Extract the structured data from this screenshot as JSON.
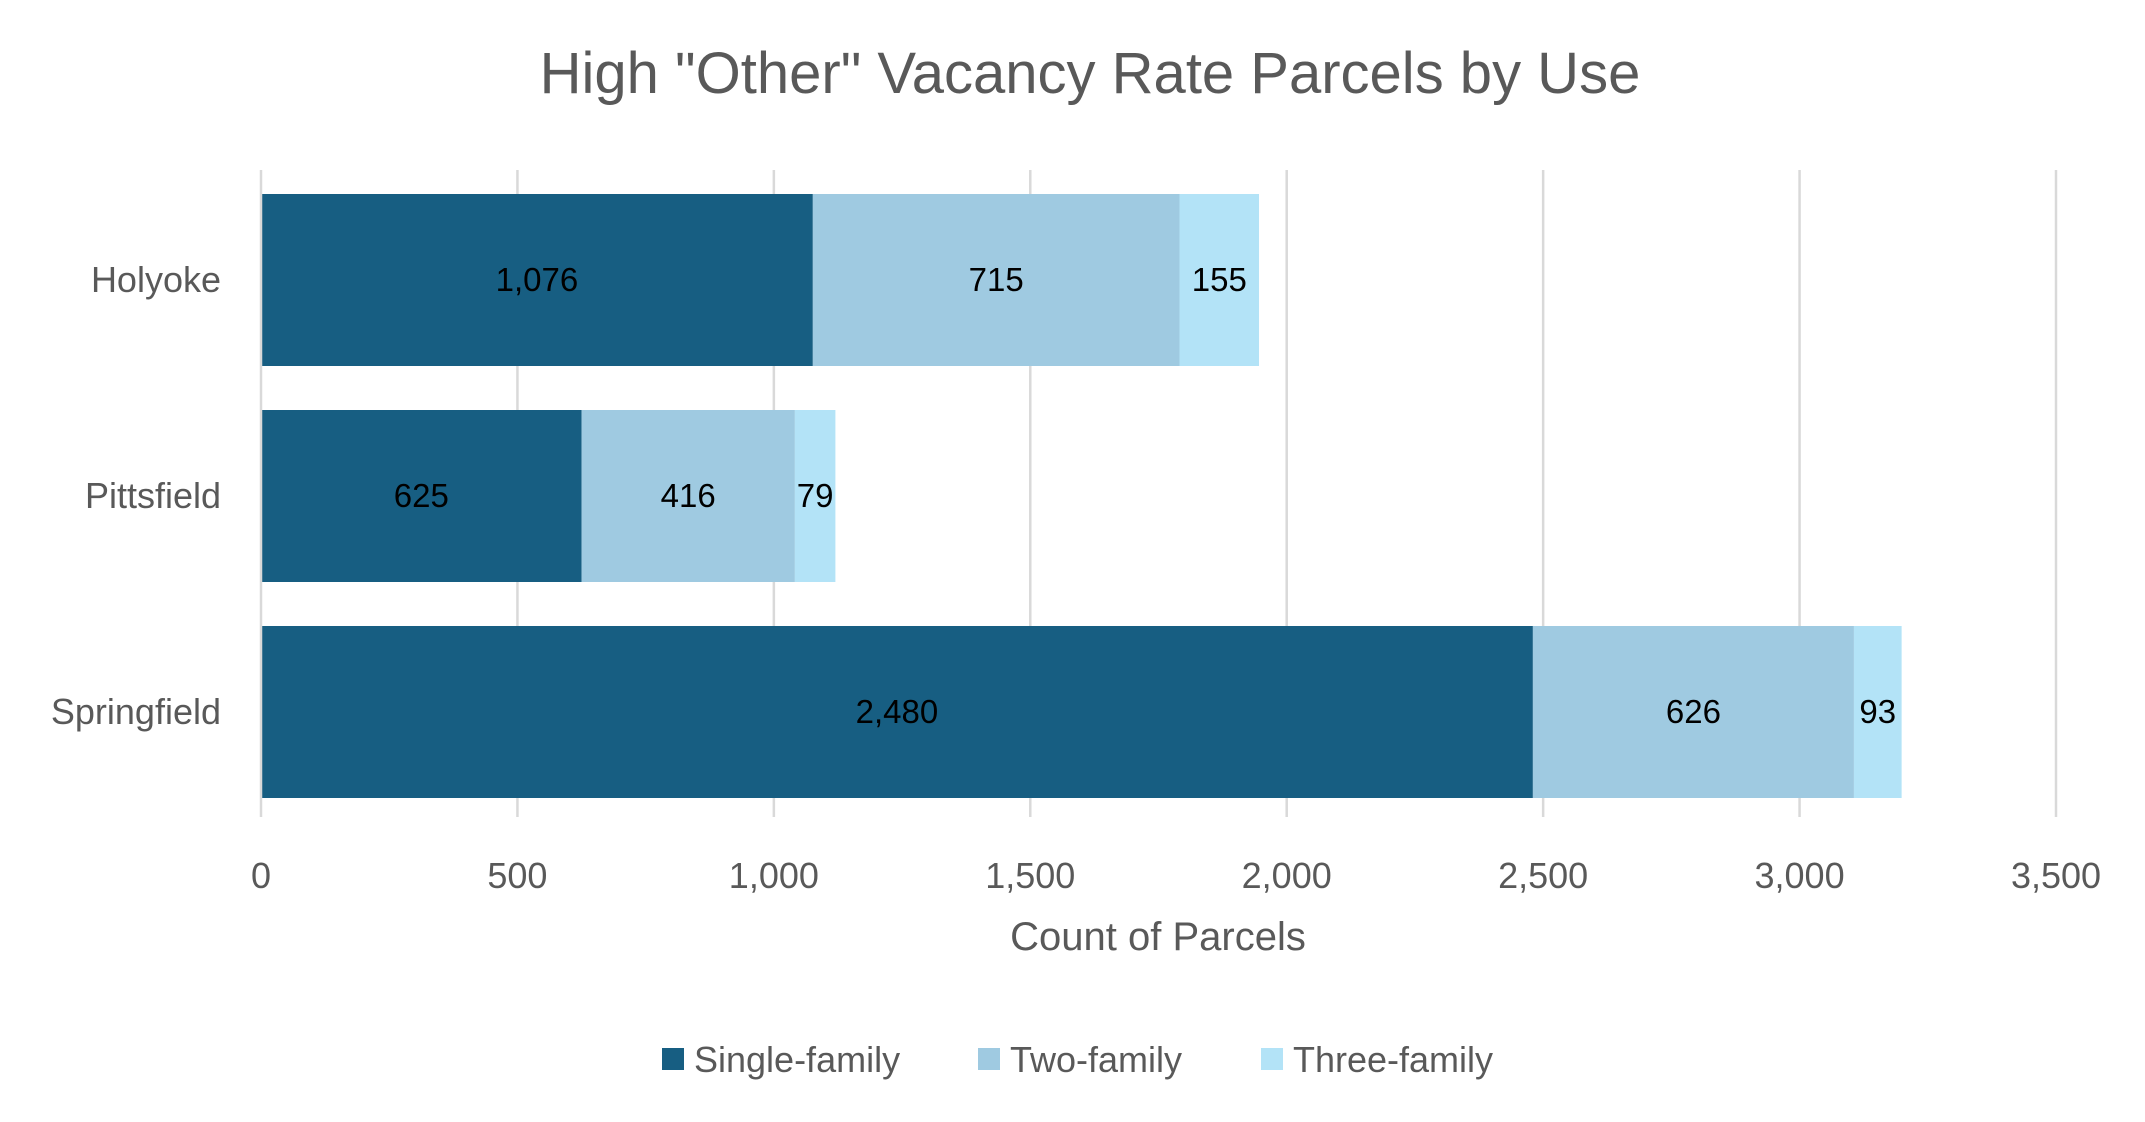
{
  "chart_data": {
    "type": "bar",
    "orientation": "horizontal",
    "stacked": true,
    "title": "High \"Other\" Vacancy Rate Parcels by Use",
    "xlabel": "Count of Parcels",
    "ylabel": "",
    "categories": [
      "Holyoke",
      "Pittsfield",
      "Springfield"
    ],
    "series": [
      {
        "name": "Single-family",
        "values": [
          1076,
          625,
          2480
        ],
        "labels": [
          "1,076",
          "625",
          "2,480"
        ],
        "color": "#175E82"
      },
      {
        "name": "Two-family",
        "values": [
          715,
          416,
          626
        ],
        "labels": [
          "715",
          "416",
          "626"
        ],
        "color": "#9FCAE1"
      },
      {
        "name": "Three-family",
        "values": [
          155,
          79,
          93
        ],
        "labels": [
          "155",
          "79",
          "93"
        ],
        "color": "#B3E3F7"
      }
    ],
    "xlim": [
      0,
      3500
    ],
    "xticks": [
      0,
      500,
      1000,
      1500,
      2000,
      2500,
      3000,
      3500
    ],
    "xtick_labels": [
      "0",
      "500",
      "1,000",
      "1,500",
      "2,000",
      "2,500",
      "3,000",
      "3,500"
    ],
    "grid": true,
    "legend_position": "bottom",
    "gridline_color": "#D9D9D9"
  }
}
